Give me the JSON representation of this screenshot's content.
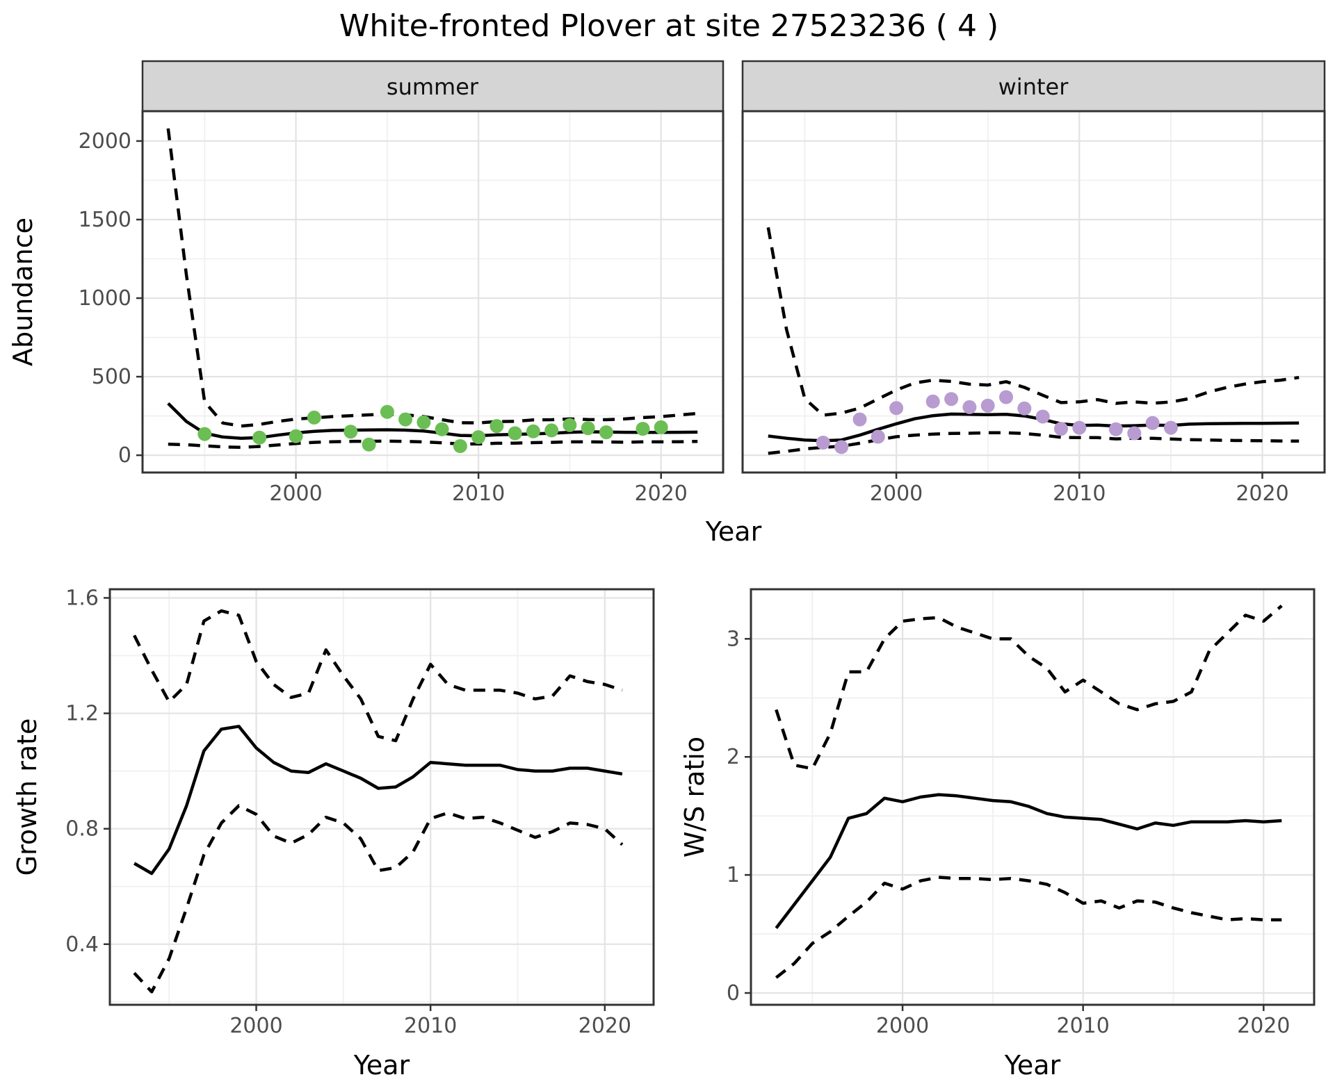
{
  "title": "White-fronted Plover at site 27523236 ( 4 )",
  "colors": {
    "summer_point": "#6bbe53",
    "winter_point": "#b89bd1",
    "line": "#000000",
    "strip_bg": "#d5d5d5",
    "panel_bg": "#ffffff",
    "grid_major": "#e3e3e3",
    "grid_minor": "#f0f0f0",
    "border": "#333333",
    "tick_label": "#4d4d4d"
  },
  "chart_data": [
    {
      "id": "abundance-summer",
      "type": "line",
      "facet_label": "summer",
      "xlabel": "Year",
      "ylabel": "Abundance",
      "x_ticks": [
        2000,
        2010,
        2020
      ],
      "x_minor": [
        1995,
        2005,
        2015
      ],
      "y_ticks": [
        0,
        500,
        1000,
        1500,
        2000
      ],
      "y_tick_labels": [
        "0",
        "500",
        "1000",
        "1500",
        "2000"
      ],
      "y_minor": [
        250,
        750,
        1250,
        1750
      ],
      "xlim": [
        1991.6,
        2023.4
      ],
      "ylim": [
        -110,
        2190
      ],
      "legend": "off",
      "grid": "on",
      "years": [
        1993,
        1994,
        1995,
        1996,
        1997,
        1998,
        1999,
        2000,
        2001,
        2002,
        2003,
        2004,
        2005,
        2006,
        2007,
        2008,
        2009,
        2010,
        2011,
        2012,
        2013,
        2014,
        2015,
        2016,
        2017,
        2018,
        2019,
        2020,
        2021,
        2022
      ],
      "series": [
        {
          "name": "upper-95ci",
          "style": "dashed",
          "values": [
            2080,
            1150,
            340,
            205,
            186,
            196,
            215,
            230,
            238,
            246,
            252,
            257,
            262,
            257,
            246,
            226,
            207,
            206,
            214,
            216,
            225,
            226,
            231,
            227,
            226,
            231,
            240,
            246,
            256,
            266
          ]
        },
        {
          "name": "mean",
          "style": "solid",
          "values": [
            330,
            215,
            140,
            116,
            108,
            112,
            128,
            142,
            152,
            158,
            160,
            161,
            162,
            160,
            154,
            141,
            126,
            124,
            130,
            133,
            136,
            140,
            146,
            149,
            148,
            146,
            145,
            145,
            146,
            147
          ]
        },
        {
          "name": "lower-95ci",
          "style": "dashed",
          "values": [
            70,
            67,
            60,
            53,
            50,
            56,
            65,
            75,
            82,
            86,
            88,
            89,
            90,
            88,
            85,
            79,
            72,
            72,
            76,
            77,
            80,
            82,
            85,
            85,
            84,
            83,
            85,
            85,
            86,
            88
          ]
        }
      ],
      "points": {
        "name": "observed-counts",
        "color": "#6bbe53",
        "data": [
          [
            1995,
            135
          ],
          [
            1998,
            112
          ],
          [
            2000,
            121
          ],
          [
            2001,
            240
          ],
          [
            2003,
            150
          ],
          [
            2004,
            68
          ],
          [
            2005,
            276
          ],
          [
            2006,
            228
          ],
          [
            2007,
            210
          ],
          [
            2008,
            165
          ],
          [
            2009,
            58
          ],
          [
            2010,
            115
          ],
          [
            2011,
            186
          ],
          [
            2012,
            140
          ],
          [
            2013,
            152
          ],
          [
            2014,
            158
          ],
          [
            2015,
            192
          ],
          [
            2016,
            172
          ],
          [
            2017,
            146
          ],
          [
            2019,
            168
          ],
          [
            2020,
            178
          ]
        ]
      }
    },
    {
      "id": "abundance-winter",
      "type": "line",
      "facet_label": "winter",
      "xlabel": "Year",
      "ylabel": "Abundance",
      "x_ticks": [
        2000,
        2010,
        2020
      ],
      "x_minor": [
        1995,
        2005,
        2015
      ],
      "y_ticks": [
        0,
        500,
        1000,
        1500,
        2000
      ],
      "y_tick_labels": [
        "0",
        "500",
        "1000",
        "1500",
        "2000"
      ],
      "y_minor": [
        250,
        750,
        1250,
        1750
      ],
      "xlim": [
        1991.6,
        2023.4
      ],
      "ylim": [
        -110,
        2190
      ],
      "legend": "off",
      "grid": "on",
      "years": [
        1993,
        1994,
        1995,
        1996,
        1997,
        1998,
        1999,
        2000,
        2001,
        2002,
        2003,
        2004,
        2005,
        2006,
        2007,
        2008,
        2009,
        2010,
        2011,
        2012,
        2013,
        2014,
        2015,
        2016,
        2017,
        2018,
        2019,
        2020,
        2021,
        2022
      ],
      "series": [
        {
          "name": "upper-95ci",
          "style": "dashed",
          "values": [
            1450,
            800,
            360,
            255,
            268,
            300,
            358,
            415,
            460,
            478,
            470,
            452,
            447,
            468,
            432,
            382,
            335,
            340,
            354,
            330,
            340,
            331,
            339,
            360,
            400,
            430,
            452,
            468,
            478,
            495
          ]
        },
        {
          "name": "mean",
          "style": "solid",
          "values": [
            122,
            108,
            97,
            92,
            97,
            128,
            165,
            200,
            232,
            252,
            262,
            260,
            258,
            260,
            250,
            228,
            200,
            190,
            192,
            186,
            188,
            192,
            190,
            198,
            201,
            202,
            203,
            203,
            204,
            205
          ]
        },
        {
          "name": "lower-95ci",
          "style": "dashed",
          "values": [
            12,
            25,
            40,
            50,
            57,
            76,
            98,
            118,
            128,
            134,
            139,
            140,
            143,
            143,
            138,
            128,
            114,
            112,
            112,
            104,
            108,
            108,
            103,
            99,
            97,
            95,
            93,
            92,
            91,
            90
          ]
        }
      ],
      "points": {
        "name": "observed-counts",
        "color": "#b89bd1",
        "data": [
          [
            1996,
            80
          ],
          [
            1997,
            52
          ],
          [
            1998,
            228
          ],
          [
            1999,
            118
          ],
          [
            2000,
            300
          ],
          [
            2002,
            342
          ],
          [
            2003,
            358
          ],
          [
            2004,
            306
          ],
          [
            2005,
            316
          ],
          [
            2006,
            370
          ],
          [
            2007,
            298
          ],
          [
            2008,
            246
          ],
          [
            2009,
            168
          ],
          [
            2010,
            175
          ],
          [
            2012,
            165
          ],
          [
            2013,
            140
          ],
          [
            2014,
            205
          ],
          [
            2015,
            175
          ]
        ]
      }
    },
    {
      "id": "growth-rate",
      "type": "line",
      "facet_label": "",
      "xlabel": "Year",
      "ylabel": "Growth rate",
      "x_ticks": [
        2000,
        2010,
        2020
      ],
      "x_minor": [
        1995,
        2005,
        2015
      ],
      "y_ticks": [
        0.4,
        0.8,
        1.2,
        1.6
      ],
      "y_tick_labels": [
        "0.4",
        "0.8",
        "1.2",
        "1.6"
      ],
      "y_minor": [
        0.2,
        0.6,
        1.0,
        1.4
      ],
      "xlim": [
        1991.6,
        2022.8
      ],
      "ylim": [
        0.19,
        1.63
      ],
      "legend": "off",
      "grid": "on",
      "years": [
        1993,
        1994,
        1995,
        1996,
        1997,
        1998,
        1999,
        2000,
        2001,
        2002,
        2003,
        2004,
        2005,
        2006,
        2007,
        2008,
        2009,
        2010,
        2011,
        2012,
        2013,
        2014,
        2015,
        2016,
        2017,
        2018,
        2019,
        2020,
        2021
      ],
      "series": [
        {
          "name": "upper-95ci",
          "style": "dashed",
          "values": [
            1.47,
            1.35,
            1.24,
            1.3,
            1.52,
            1.555,
            1.54,
            1.38,
            1.3,
            1.255,
            1.27,
            1.42,
            1.33,
            1.25,
            1.12,
            1.105,
            1.25,
            1.37,
            1.3,
            1.28,
            1.28,
            1.28,
            1.27,
            1.25,
            1.26,
            1.33,
            1.31,
            1.3,
            1.28
          ]
        },
        {
          "name": "mean",
          "style": "solid",
          "values": [
            0.68,
            0.645,
            0.73,
            0.88,
            1.07,
            1.145,
            1.155,
            1.08,
            1.03,
            1.0,
            0.995,
            1.025,
            1.0,
            0.975,
            0.94,
            0.945,
            0.98,
            1.03,
            1.025,
            1.02,
            1.02,
            1.02,
            1.005,
            1.0,
            1.0,
            1.01,
            1.01,
            1.0,
            0.99
          ]
        },
        {
          "name": "lower-95ci",
          "style": "dashed",
          "values": [
            0.3,
            0.235,
            0.35,
            0.525,
            0.71,
            0.82,
            0.88,
            0.85,
            0.775,
            0.75,
            0.78,
            0.84,
            0.82,
            0.765,
            0.655,
            0.665,
            0.72,
            0.835,
            0.855,
            0.835,
            0.84,
            0.82,
            0.795,
            0.77,
            0.79,
            0.82,
            0.815,
            0.8,
            0.745
          ]
        }
      ],
      "points": null
    },
    {
      "id": "ws-ratio",
      "type": "line",
      "facet_label": "",
      "xlabel": "Year",
      "ylabel": "W/S ratio",
      "x_ticks": [
        2000,
        2010,
        2020
      ],
      "x_minor": [
        1995,
        2005,
        2015
      ],
      "y_ticks": [
        0,
        1,
        2,
        3
      ],
      "y_tick_labels": [
        "0",
        "1",
        "2",
        "3"
      ],
      "y_minor": [
        0.5,
        1.5,
        2.5
      ],
      "xlim": [
        1991.6,
        2022.8
      ],
      "ylim": [
        -0.1,
        3.42
      ],
      "legend": "off",
      "grid": "on",
      "years": [
        1993,
        1994,
        1995,
        1996,
        1997,
        1998,
        1999,
        2000,
        2001,
        2002,
        2003,
        2004,
        2005,
        2006,
        2007,
        2008,
        2009,
        2010,
        2011,
        2012,
        2013,
        2014,
        2015,
        2016,
        2017,
        2018,
        2019,
        2020,
        2021
      ],
      "series": [
        {
          "name": "upper-95ci",
          "style": "dashed",
          "values": [
            2.4,
            1.93,
            1.9,
            2.2,
            2.72,
            2.72,
            3.0,
            3.15,
            3.17,
            3.18,
            3.1,
            3.05,
            3.0,
            3.0,
            2.85,
            2.75,
            2.55,
            2.65,
            2.55,
            2.45,
            2.4,
            2.45,
            2.47,
            2.55,
            2.9,
            3.05,
            3.2,
            3.15,
            3.28
          ]
        },
        {
          "name": "mean",
          "style": "solid",
          "values": [
            0.55,
            0.75,
            0.95,
            1.15,
            1.48,
            1.52,
            1.65,
            1.62,
            1.66,
            1.68,
            1.67,
            1.65,
            1.63,
            1.62,
            1.58,
            1.52,
            1.49,
            1.48,
            1.47,
            1.43,
            1.39,
            1.44,
            1.42,
            1.45,
            1.45,
            1.45,
            1.46,
            1.45,
            1.46
          ]
        },
        {
          "name": "lower-95ci",
          "style": "dashed",
          "values": [
            0.13,
            0.25,
            0.42,
            0.52,
            0.65,
            0.77,
            0.93,
            0.88,
            0.95,
            0.98,
            0.97,
            0.97,
            0.96,
            0.97,
            0.95,
            0.92,
            0.85,
            0.76,
            0.78,
            0.72,
            0.78,
            0.77,
            0.72,
            0.68,
            0.65,
            0.62,
            0.63,
            0.62,
            0.62
          ]
        }
      ],
      "points": null
    }
  ]
}
